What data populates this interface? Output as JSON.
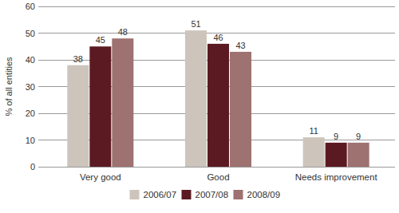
{
  "chart_data": {
    "type": "bar",
    "y_label": "% of all entities",
    "categories": [
      "Very good",
      "Good",
      "Needs improvement"
    ],
    "series": [
      {
        "name": "2006/07",
        "color": "#cdc4bc",
        "values": [
          38,
          51,
          11
        ]
      },
      {
        "name": "2007/08",
        "color": "#5b1a22",
        "values": [
          45,
          46,
          9
        ]
      },
      {
        "name": "2008/09",
        "color": "#9d7270",
        "values": [
          48,
          43,
          9
        ]
      }
    ],
    "ylim": [
      0,
      60
    ],
    "yticks": [
      0,
      10,
      20,
      30,
      40,
      50,
      60
    ],
    "grid": true,
    "data_labels": true,
    "legend": "bottom"
  }
}
